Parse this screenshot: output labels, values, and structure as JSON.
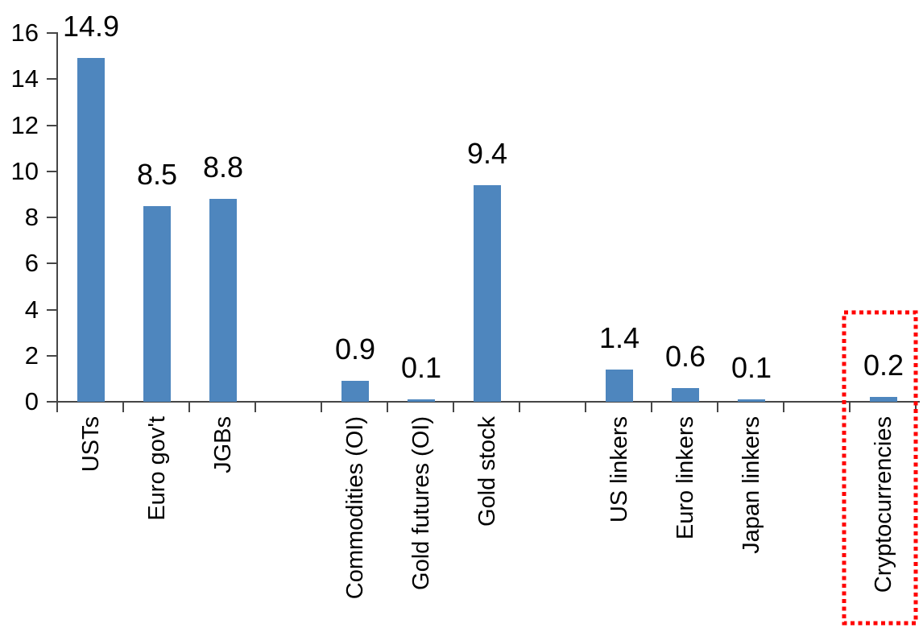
{
  "chart_data": {
    "type": "bar",
    "title": "",
    "xlabel": "",
    "ylabel": "",
    "categories": [
      "USTs",
      "Euro gov't",
      "JGBs",
      "Commodities (OI)",
      "Gold futures (OI)",
      "Gold stock",
      "US linkers",
      "Euro linkers",
      "Japan linkers",
      "Cryptocurrencies"
    ],
    "values": [
      14.9,
      8.5,
      8.8,
      0.9,
      0.1,
      9.4,
      1.4,
      0.6,
      0.1,
      0.2
    ],
    "value_labels": [
      "14.9",
      "8.5",
      "8.8",
      "0.9",
      "0.1",
      "9.4",
      "1.4",
      "0.6",
      "0.1",
      "0.2"
    ],
    "ylim": [
      0,
      16
    ],
    "yticks": [
      0,
      2,
      4,
      6,
      8,
      10,
      12,
      14,
      16
    ],
    "grid": false,
    "legend": false,
    "slots": [
      0,
      1,
      2,
      4,
      5,
      6,
      8,
      9,
      10,
      12
    ],
    "total_slots": 13,
    "bar_color": "#4E86BE",
    "axis_color": "#464646",
    "text_color": "#000000",
    "highlight": {
      "category": "Cryptocurrencies",
      "style": "red-dotted-rectangle",
      "color": "#FF0000"
    }
  }
}
